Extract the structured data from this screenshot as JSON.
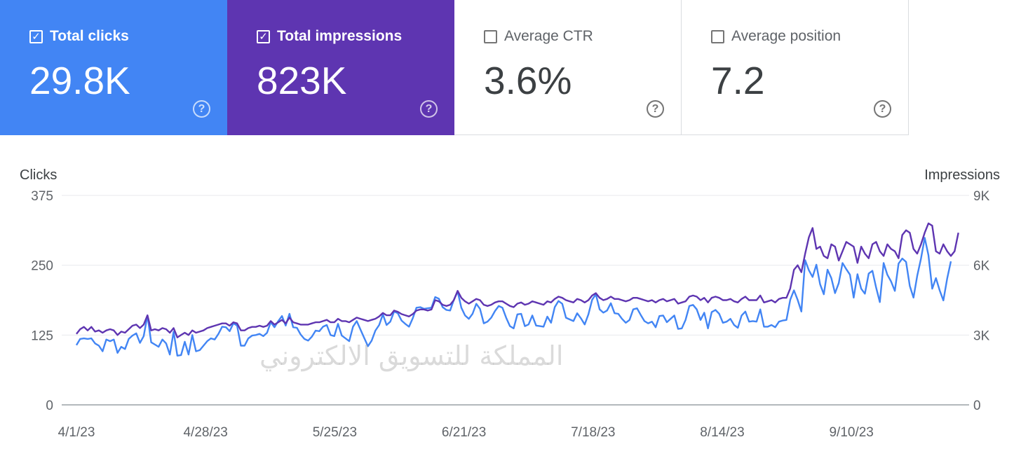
{
  "cards": [
    {
      "label": "Total clicks",
      "value": "29.8K",
      "checked": true,
      "color": "#4285f4",
      "help_icon": "help-circle-icon"
    },
    {
      "label": "Total impressions",
      "value": "823K",
      "checked": true,
      "color": "#5e35b1",
      "help_icon": "help-circle-icon"
    },
    {
      "label": "Average CTR",
      "value": "3.6%",
      "checked": false,
      "color": "#ffffff",
      "help_icon": "help-circle-icon"
    },
    {
      "label": "Average position",
      "value": "7.2",
      "checked": false,
      "color": "#ffffff",
      "help_icon": "help-circle-icon"
    }
  ],
  "watermark": "المملكة للتسويق الالكتروني",
  "chart_data": {
    "type": "line",
    "title": "",
    "y_left_label": "Clicks",
    "y_right_label": "Impressions",
    "y_left_ticks": [
      "375",
      "250",
      "125",
      "0"
    ],
    "y_right_ticks": [
      "9K",
      "6K",
      "3K",
      "0"
    ],
    "y_left_lim": [
      0,
      375
    ],
    "y_right_lim": [
      0,
      9000
    ],
    "x_ticks": [
      "4/1/23",
      "4/28/23",
      "5/25/23",
      "6/21/23",
      "7/18/23",
      "8/14/23",
      "9/10/23"
    ],
    "grid": true,
    "series": [
      {
        "name": "Clicks",
        "axis": "left",
        "color": "#4285f4",
        "values": [
          107,
          118,
          119,
          118,
          119,
          110,
          106,
          96,
          117,
          114,
          117,
          93,
          104,
          100,
          118,
          124,
          128,
          111,
          123,
          160,
          112,
          108,
          104,
          117,
          110,
          90,
          131,
          88,
          89,
          113,
          90,
          125,
          96,
          98,
          106,
          114,
          119,
          117,
          127,
          140,
          139,
          132,
          146,
          142,
          106,
          106,
          119,
          124,
          125,
          127,
          123,
          129,
          148,
          139,
          150,
          159,
          142,
          163,
          139,
          138,
          126,
          118,
          115,
          122,
          133,
          132,
          140,
          143,
          125,
          123,
          145,
          124,
          119,
          114,
          140,
          150,
          135,
          120,
          105,
          115,
          133,
          143,
          162,
          143,
          149,
          167,
          164,
          151,
          145,
          140,
          155,
          174,
          175,
          172,
          173,
          174,
          193,
          190,
          175,
          170,
          169,
          188,
          203,
          174,
          160,
          154,
          163,
          181,
          172,
          146,
          149,
          156,
          168,
          177,
          174,
          156,
          141,
          137,
          162,
          163,
          141,
          144,
          160,
          142,
          141,
          140,
          158,
          147,
          175,
          186,
          181,
          156,
          153,
          150,
          164,
          155,
          144,
          162,
          188,
          198,
          171,
          165,
          169,
          182,
          164,
          163,
          154,
          147,
          152,
          171,
          173,
          161,
          150,
          146,
          149,
          139,
          159,
          160,
          148,
          154,
          160,
          136,
          137,
          152,
          177,
          179,
          171,
          152,
          165,
          137,
          166,
          170,
          163,
          147,
          149,
          154,
          143,
          138,
          160,
          167,
          149,
          150,
          149,
          171,
          140,
          140,
          143,
          139,
          149,
          151,
          152,
          188,
          205,
          188,
          167,
          259,
          241,
          229,
          251,
          216,
          198,
          242,
          227,
          200,
          218,
          254,
          243,
          233,
          192,
          234,
          208,
          199,
          235,
          240,
          210,
          184,
          254,
          233,
          221,
          204,
          253,
          262,
          256,
          213,
          192,
          231,
          262,
          299,
          268,
          208,
          227,
          205,
          187,
          226,
          257
        ],
        "smooth": false
      },
      {
        "name": "Impressions",
        "axis": "right",
        "color": "#5e35b1",
        "values": [
          3050,
          3250,
          3350,
          3200,
          3350,
          3150,
          3200,
          3100,
          3200,
          3250,
          3200,
          3000,
          3150,
          3100,
          3250,
          3400,
          3450,
          3300,
          3450,
          3850,
          3200,
          3250,
          3200,
          3300,
          3250,
          3100,
          3300,
          2900,
          3000,
          3100,
          3000,
          3200,
          3100,
          3150,
          3200,
          3300,
          3350,
          3400,
          3450,
          3500,
          3500,
          3400,
          3550,
          3500,
          3200,
          3200,
          3300,
          3350,
          3350,
          3400,
          3350,
          3400,
          3600,
          3450,
          3550,
          3650,
          3500,
          3750,
          3550,
          3500,
          3450,
          3450,
          3450,
          3500,
          3550,
          3550,
          3600,
          3650,
          3550,
          3550,
          3700,
          3600,
          3600,
          3550,
          3650,
          3750,
          3700,
          3650,
          3600,
          3650,
          3700,
          3800,
          3950,
          3850,
          3850,
          4050,
          4000,
          3900,
          3850,
          3800,
          3900,
          4050,
          4100,
          4100,
          4050,
          4100,
          4500,
          4450,
          4300,
          4250,
          4300,
          4500,
          4900,
          4600,
          4450,
          4350,
          4450,
          4550,
          4500,
          4300,
          4250,
          4300,
          4400,
          4450,
          4450,
          4350,
          4250,
          4200,
          4350,
          4400,
          4300,
          4350,
          4450,
          4400,
          4350,
          4300,
          4450,
          4400,
          4550,
          4650,
          4600,
          4500,
          4450,
          4400,
          4550,
          4500,
          4400,
          4500,
          4700,
          4800,
          4600,
          4500,
          4550,
          4650,
          4550,
          4550,
          4500,
          4450,
          4500,
          4600,
          4600,
          4550,
          4500,
          4450,
          4500,
          4400,
          4500,
          4550,
          4450,
          4500,
          4550,
          4350,
          4400,
          4450,
          4650,
          4700,
          4650,
          4500,
          4600,
          4400,
          4600,
          4650,
          4600,
          4500,
          4500,
          4550,
          4450,
          4400,
          4550,
          4650,
          4500,
          4500,
          4500,
          4700,
          4400,
          4450,
          4500,
          4400,
          4550,
          4600,
          4600,
          5000,
          5800,
          6000,
          5700,
          6500,
          7200,
          7600,
          6700,
          6800,
          6400,
          6300,
          6900,
          6800,
          6200,
          6600,
          7000,
          6900,
          6800,
          6100,
          6800,
          6500,
          6300,
          6900,
          7000,
          6600,
          6400,
          6900,
          6700,
          6600,
          6300,
          7300,
          7500,
          7400,
          6700,
          6500,
          6900,
          7400,
          7800,
          7700,
          6600,
          6500,
          6900,
          6600,
          6400,
          6600,
          7400
        ],
        "smooth": false
      }
    ]
  }
}
